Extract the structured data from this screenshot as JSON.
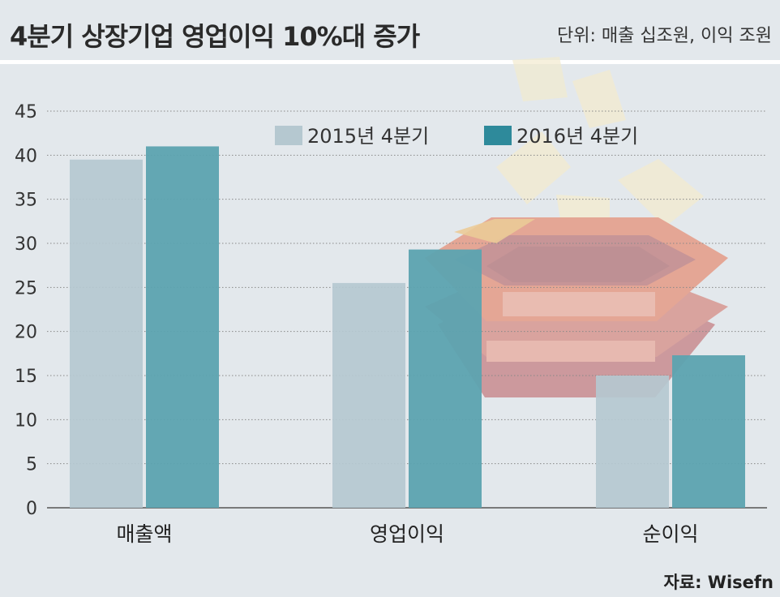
{
  "header": {
    "title": "4분기 상장기업 영업이익 10%대 증가",
    "unit": "단위: 매출 십조원, 이익 조원"
  },
  "footer": {
    "source": "자료: Wisefn"
  },
  "colors": {
    "series_2015": "#b5c8d0",
    "series_2016": "#5ca3b0",
    "background": "#e3e8ec"
  },
  "chart_data": {
    "type": "bar",
    "title": "",
    "xlabel": "",
    "ylabel": "",
    "categories": [
      "매출액",
      "영업이익",
      "순이익"
    ],
    "series": [
      {
        "name": "2015년 4분기",
        "values": [
          39.5,
          25.5,
          15.0
        ]
      },
      {
        "name": "2016년 4분기",
        "values": [
          41.0,
          29.3,
          17.3
        ]
      }
    ],
    "ylim": [
      0,
      45
    ],
    "yticks": [
      0,
      5,
      10,
      15,
      20,
      25,
      30,
      35,
      40,
      45
    ],
    "grid": true,
    "legend_position": "top-center"
  }
}
